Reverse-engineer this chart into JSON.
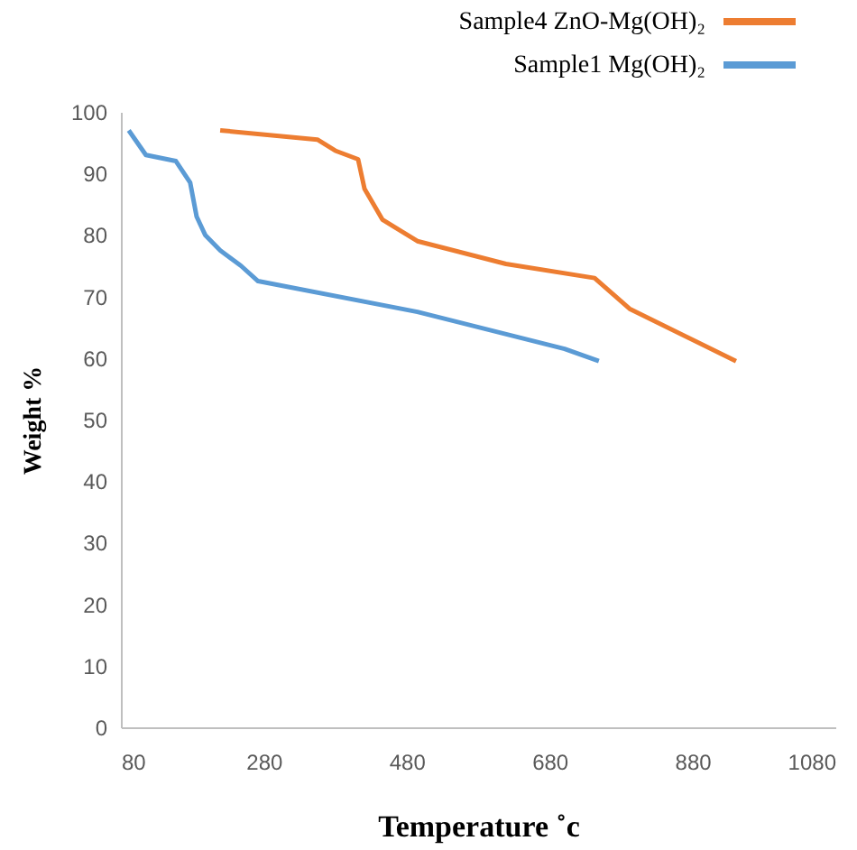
{
  "chart_data": {
    "type": "line",
    "xlabel": "Temperature ˚c",
    "ylabel": "Weight %",
    "xlim": [
      80,
      1080
    ],
    "xticks": [
      80,
      280,
      480,
      680,
      880,
      1080
    ],
    "ylim": [
      0,
      100
    ],
    "yticks": [
      0,
      10,
      20,
      30,
      40,
      50,
      60,
      70,
      80,
      90,
      100
    ],
    "grid": false,
    "legend": "top right",
    "marker": "none",
    "line_style": "solid",
    "series": [
      {
        "name": "Sample4    ZnO-Mg(OH)₂",
        "color": "#ed7d31",
        "x": [
          219,
          355,
          380,
          412,
          421,
          446,
          495,
          619,
          743,
          792,
          941
        ],
        "values": [
          97,
          95.5,
          93.7,
          92.3,
          87.5,
          82.5,
          79,
          75.3,
          73,
          68,
          59.5
        ]
      },
      {
        "name": "Sample1      Mg(OH)₂",
        "color": "#5b9bd5",
        "x": [
          91,
          115,
          157,
          177,
          186,
          198,
          219,
          248,
          272,
          495,
          701,
          749
        ],
        "values": [
          97,
          93,
          92,
          88.5,
          83,
          80,
          77.5,
          75,
          72.5,
          67.5,
          61.5,
          59.5
        ]
      }
    ]
  }
}
